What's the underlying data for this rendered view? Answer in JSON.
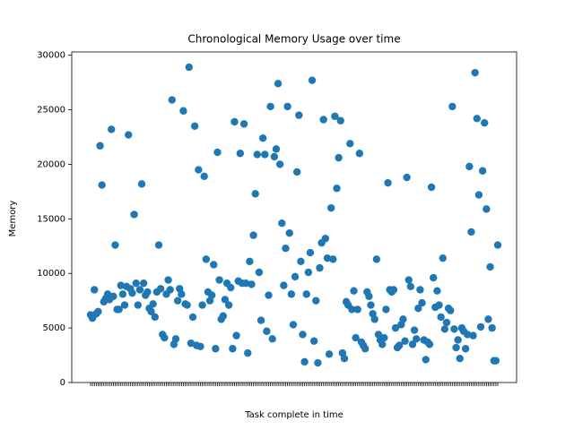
{
  "chart_data": {
    "type": "scatter",
    "title": "Chronological Memory Usage over time",
    "x_label": "Task complete in time",
    "y_label": "Memory",
    "categories": [
      null,
      null,
      null,
      null,
      null,
      null,
      null,
      null,
      null,
      null,
      null,
      null,
      null,
      null,
      null,
      null,
      null,
      null,
      null,
      null,
      null,
      null,
      null,
      null,
      null,
      null,
      null,
      null,
      null,
      null,
      null,
      null,
      null,
      null,
      null,
      null,
      null,
      null,
      null,
      null,
      null,
      null,
      null,
      null,
      null,
      null,
      null,
      null,
      null,
      null,
      null,
      null,
      null,
      null,
      null,
      null,
      null,
      null,
      null,
      null,
      null,
      null,
      null,
      null,
      null,
      null,
      null,
      null,
      null,
      null,
      null,
      null,
      null,
      null,
      null,
      null,
      null,
      null,
      null,
      null,
      null,
      null,
      null,
      null,
      null,
      null,
      null,
      null,
      null,
      null,
      null,
      null,
      null,
      null,
      null,
      null,
      null,
      null,
      null,
      null,
      null,
      null,
      null,
      null,
      null,
      null,
      null,
      null,
      null,
      null,
      null,
      null,
      null,
      null,
      null,
      null,
      null,
      null,
      null,
      null,
      null,
      null,
      null,
      null,
      null,
      null,
      null,
      null,
      null,
      null,
      null,
      null,
      null,
      null,
      null,
      null,
      null,
      null,
      null,
      null,
      null,
      null,
      null,
      null,
      null,
      null,
      null,
      null,
      null,
      null,
      null,
      null,
      null,
      null,
      null,
      null,
      null,
      null,
      null,
      null,
      null,
      null,
      null,
      null,
      null,
      null,
      null,
      null,
      null,
      null,
      null,
      null,
      null,
      null,
      null,
      null,
      null,
      null,
      null,
      null,
      null,
      null,
      null,
      null,
      null,
      null,
      null,
      null,
      null,
      null,
      null,
      null,
      null,
      null,
      null,
      null,
      null,
      null,
      null,
      null,
      null,
      null,
      null,
      null,
      null,
      null,
      null,
      null,
      null,
      null,
      null,
      null,
      null,
      null,
      null,
      null
    ],
    "values": [
      6200,
      5900,
      8500,
      6300,
      6500,
      21700,
      18100,
      7400,
      7700,
      8100,
      7600,
      23200,
      7900,
      12600,
      6700,
      6700,
      8900,
      8100,
      7100,
      8800,
      22700,
      8600,
      8200,
      15400,
      9100,
      7100,
      8500,
      18200,
      9100,
      8000,
      8300,
      6800,
      6500,
      7200,
      6000,
      8300,
      12600,
      8600,
      4400,
      4100,
      8100,
      9400,
      8500,
      25900,
      3500,
      4000,
      7500,
      8600,
      8100,
      24900,
      7200,
      7100,
      28900,
      3600,
      6000,
      23500,
      3400,
      19500,
      3300,
      7100,
      18900,
      11300,
      8300,
      7500,
      8000,
      10800,
      3100,
      21100,
      9400,
      5800,
      6100,
      7600,
      9100,
      7100,
      8700,
      3100,
      23900,
      4300,
      9300,
      21000,
      9100,
      23700,
      9100,
      2700,
      11100,
      9000,
      13500,
      17300,
      20900,
      10100,
      5700,
      22400,
      20900,
      4700,
      8000,
      25300,
      4000,
      20700,
      21400,
      27400,
      20000,
      14600,
      8900,
      12300,
      25300,
      13700,
      8100,
      5300,
      9700,
      19300,
      24500,
      11100,
      4400,
      1900,
      8100,
      10100,
      11900,
      27700,
      3800,
      7500,
      1800,
      10500,
      12800,
      24100,
      13200,
      11400,
      2600,
      16000,
      11300,
      24400,
      17800,
      20600,
      24000,
      2700,
      2200,
      7400,
      7100,
      21900,
      6700,
      8400,
      4100,
      6700,
      21000,
      3700,
      3400,
      3100,
      8300,
      7900,
      7100,
      6300,
      5800,
      11300,
      4400,
      3900,
      3500,
      4100,
      6700,
      18300,
      8500,
      8300,
      8500,
      5000,
      3200,
      3400,
      5300,
      5800,
      3800,
      18800,
      9400,
      8800,
      3500,
      4800,
      4000,
      6800,
      8500,
      7300,
      3900,
      2100,
      3700,
      3500,
      17900,
      9600,
      6900,
      8400,
      7100,
      6000,
      11400,
      4900,
      5500,
      6800,
      6600,
      25300,
      4900,
      3200,
      3900,
      2200,
      5000,
      4700,
      3100,
      4400,
      19800,
      13800,
      4300,
      28400,
      24200,
      17200,
      5100,
      19400,
      23800,
      15900,
      5800,
      10600,
      5000,
      2000,
      2000,
      12600
    ],
    "color": "#1f77b4",
    "ylim": [
      0,
      30300
    ],
    "yticks": [
      0,
      5000,
      10000,
      15000,
      20000,
      25000,
      30000
    ]
  }
}
